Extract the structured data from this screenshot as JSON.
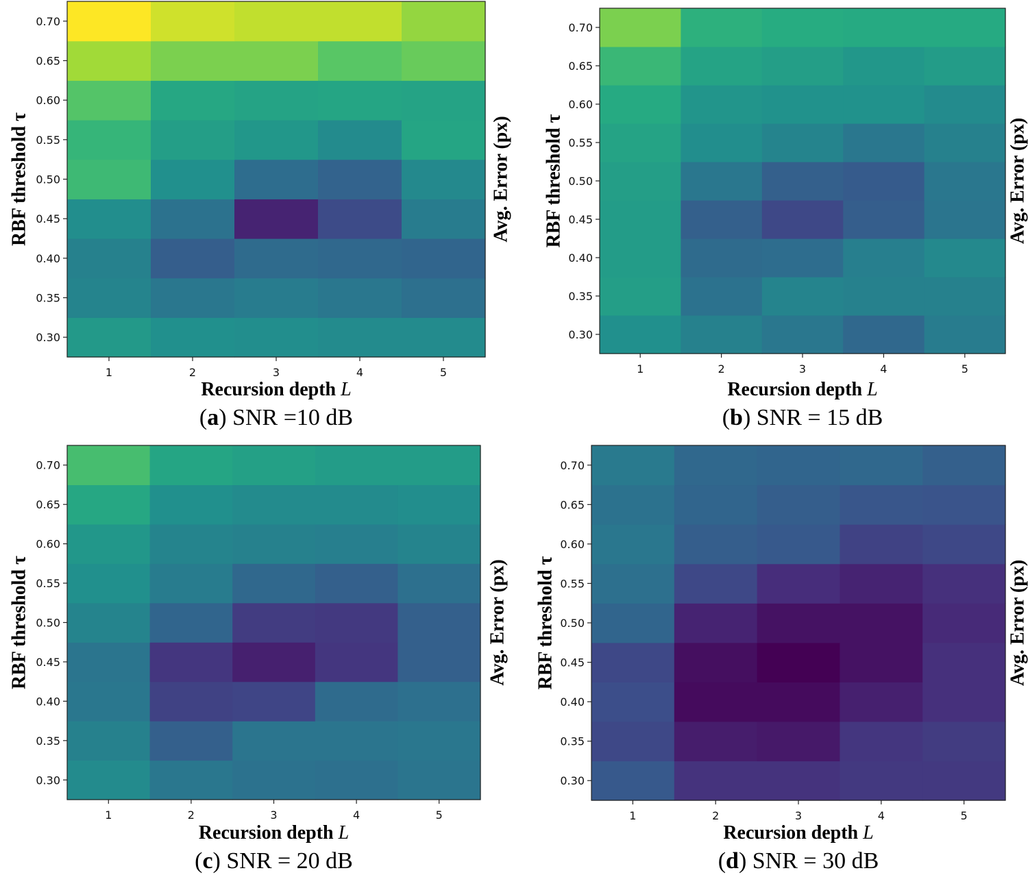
{
  "chart_data": [
    {
      "type": "heatmap",
      "panel": "a",
      "caption_label": "a",
      "caption_text": "SNR =10 dB",
      "xlabel": "Recursion depth",
      "xlabel_var": "L",
      "ylabel": "RBF threshold τ",
      "colorbar_label": "Avg. Error (px)",
      "x": [
        1,
        2,
        3,
        4,
        5
      ],
      "x_ticks": [
        "1",
        "2",
        "3",
        "4",
        "5"
      ],
      "y": [
        0.3,
        0.35,
        0.4,
        0.45,
        0.5,
        0.55,
        0.6,
        0.65,
        0.7
      ],
      "y_ticks": [
        "0.30",
        "0.35",
        "0.40",
        "0.45",
        "0.50",
        "0.55",
        "0.60",
        "0.65",
        "0.70"
      ],
      "z": [
        [
          0.54,
          0.5,
          0.49,
          0.48,
          0.48
        ],
        [
          0.45,
          0.4,
          0.42,
          0.4,
          0.37
        ],
        [
          0.44,
          0.3,
          0.35,
          0.34,
          0.33
        ],
        [
          0.49,
          0.38,
          0.1,
          0.23,
          0.42
        ],
        [
          0.68,
          0.5,
          0.36,
          0.32,
          0.47
        ],
        [
          0.66,
          0.56,
          0.53,
          0.48,
          0.59
        ],
        [
          0.73,
          0.6,
          0.58,
          0.59,
          0.58
        ],
        [
          0.86,
          0.8,
          0.8,
          0.74,
          0.77
        ],
        [
          1.0,
          0.93,
          0.91,
          0.91,
          0.84
        ]
      ]
    },
    {
      "type": "heatmap",
      "panel": "b",
      "caption_label": "b",
      "caption_text": "SNR = 15 dB",
      "xlabel": "Recursion depth",
      "xlabel_var": "L",
      "ylabel": "RBF threshold τ",
      "colorbar_label": "Avg. Error (px)",
      "x": [
        1,
        2,
        3,
        4,
        5
      ],
      "x_ticks": [
        "1",
        "2",
        "3",
        "4",
        "5"
      ],
      "y": [
        0.3,
        0.35,
        0.4,
        0.45,
        0.5,
        0.55,
        0.6,
        0.65,
        0.7
      ],
      "y_ticks": [
        "0.30",
        "0.35",
        "0.40",
        "0.45",
        "0.50",
        "0.55",
        "0.60",
        "0.65",
        "0.70"
      ],
      "z": [
        [
          0.5,
          0.44,
          0.4,
          0.34,
          0.42
        ],
        [
          0.56,
          0.38,
          0.45,
          0.44,
          0.44
        ],
        [
          0.55,
          0.35,
          0.36,
          0.43,
          0.47
        ],
        [
          0.55,
          0.31,
          0.22,
          0.3,
          0.39
        ],
        [
          0.56,
          0.4,
          0.31,
          0.29,
          0.4
        ],
        [
          0.58,
          0.49,
          0.45,
          0.4,
          0.44
        ],
        [
          0.61,
          0.52,
          0.51,
          0.51,
          0.48
        ],
        [
          0.67,
          0.58,
          0.56,
          0.53,
          0.55
        ],
        [
          0.8,
          0.64,
          0.62,
          0.61,
          0.61
        ]
      ]
    },
    {
      "type": "heatmap",
      "panel": "c",
      "caption_label": "c",
      "caption_text": "SNR = 20 dB",
      "xlabel": "Recursion depth",
      "xlabel_var": "L",
      "ylabel": "RBF threshold τ",
      "colorbar_label": "Avg. Error (px)",
      "x": [
        1,
        2,
        3,
        4,
        5
      ],
      "x_ticks": [
        "1",
        "2",
        "3",
        "4",
        "5"
      ],
      "y": [
        0.3,
        0.35,
        0.4,
        0.45,
        0.5,
        0.55,
        0.6,
        0.65,
        0.7
      ],
      "y_ticks": [
        "0.30",
        "0.35",
        "0.40",
        "0.45",
        "0.50",
        "0.55",
        "0.60",
        "0.65",
        "0.70"
      ],
      "z": [
        [
          0.48,
          0.4,
          0.38,
          0.37,
          0.39
        ],
        [
          0.44,
          0.31,
          0.39,
          0.39,
          0.4
        ],
        [
          0.4,
          0.2,
          0.21,
          0.35,
          0.37
        ],
        [
          0.39,
          0.16,
          0.09,
          0.16,
          0.31
        ],
        [
          0.45,
          0.33,
          0.18,
          0.17,
          0.31
        ],
        [
          0.5,
          0.42,
          0.34,
          0.31,
          0.37
        ],
        [
          0.53,
          0.45,
          0.44,
          0.43,
          0.45
        ],
        [
          0.6,
          0.5,
          0.48,
          0.48,
          0.49
        ],
        [
          0.7,
          0.59,
          0.57,
          0.55,
          0.55
        ]
      ]
    },
    {
      "type": "heatmap",
      "panel": "d",
      "caption_label": "d",
      "caption_text": "SNR = 30 dB",
      "xlabel": "Recursion depth",
      "xlabel_var": "L",
      "ylabel": "RBF threshold τ",
      "colorbar_label": "Avg. Error (px)",
      "x": [
        1,
        2,
        3,
        4,
        5
      ],
      "x_ticks": [
        "1",
        "2",
        "3",
        "4",
        "5"
      ],
      "y": [
        0.3,
        0.35,
        0.4,
        0.45,
        0.5,
        0.55,
        0.6,
        0.65,
        0.7
      ],
      "y_ticks": [
        "0.30",
        "0.35",
        "0.40",
        "0.45",
        "0.50",
        "0.55",
        "0.60",
        "0.65",
        "0.70"
      ],
      "z": [
        [
          0.28,
          0.15,
          0.15,
          0.17,
          0.17
        ],
        [
          0.22,
          0.08,
          0.07,
          0.16,
          0.18
        ],
        [
          0.24,
          0.03,
          0.03,
          0.09,
          0.14
        ],
        [
          0.22,
          0.04,
          0.0,
          0.05,
          0.14
        ],
        [
          0.33,
          0.1,
          0.05,
          0.05,
          0.12
        ],
        [
          0.37,
          0.22,
          0.13,
          0.1,
          0.14
        ],
        [
          0.4,
          0.3,
          0.28,
          0.2,
          0.22
        ],
        [
          0.38,
          0.33,
          0.3,
          0.27,
          0.26
        ],
        [
          0.41,
          0.34,
          0.33,
          0.34,
          0.31
        ]
      ]
    }
  ]
}
